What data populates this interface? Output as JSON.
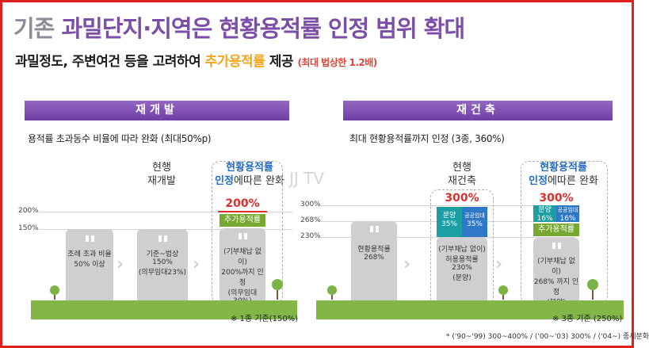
{
  "header": {
    "title_prefix": "기존",
    "title_main": "과밀단지·지역은 현황용적률 인정 범위 확대",
    "sub_text": "과밀정도, 주변여건 등을 고려하여",
    "sub_highlight": "추가용적률",
    "sub_after": "제공",
    "sub_note": "(최대 법상한 1.2배)"
  },
  "watermark": "JJ TV",
  "left_panel": {
    "title": "재개발",
    "desc": "용적률 초과동수 비율에 따라 완화 (최대50%p)",
    "ticks": [
      "200%",
      "150%"
    ],
    "tile1_text1": "조례 초과 비율",
    "tile1_text2": "50% 이상",
    "mid_label1": "현행",
    "mid_label2": "재개발",
    "tile2_text1": "기준~법상 150%",
    "tile2_text2": "(의무임대23%)",
    "new_label1": "현황용적률",
    "new_label2a": "인정",
    "new_label2b": "에따른 완화",
    "new_percent": "200%",
    "add_label": "추가용적률",
    "tile3_text1": "(기부채납 없이)",
    "tile3_text2": "200%까지 인정",
    "tile3_text3": "(의무임대30%)",
    "footer": "※ 1종 기준(150%)"
  },
  "right_panel": {
    "title": "재건축",
    "desc": "최대 현황용적률까지 인정 (3종, 360%)",
    "ticks": [
      "300%",
      "268%",
      "230%"
    ],
    "tile1_text1": "현황용적률",
    "tile1_text2": "268%",
    "mid_label1": "현행",
    "mid_label2": "재건축",
    "mid_percent": "300%",
    "bun_label": "분양",
    "bun_value": "35%",
    "gong_label": "공공임대",
    "gong_value": "35%",
    "tile2_text1": "(기부채납 없이)",
    "tile2_text2": "허용용적률",
    "tile2_text3": "230%",
    "tile2_text4": "(분양)",
    "new_label1": "현황용적률",
    "new_label2a": "인정",
    "new_label2b": "에따른 완화",
    "new_percent": "300%",
    "new_bun_label": "분양",
    "new_bun_value": "16%",
    "new_gong_label": "공공임대",
    "new_gong_value": "16%",
    "add_label": "추가용적률",
    "tile3_text1": "(기부채납 없이)",
    "tile3_text2": "268% 까지 인정",
    "tile3_text3": "(분양)",
    "footer": "※ 3종 기준 (250%)"
  },
  "footnote": "* ('90~'99) 300~400% / ('00~'03) 300% / ('04~) 종세분화"
}
